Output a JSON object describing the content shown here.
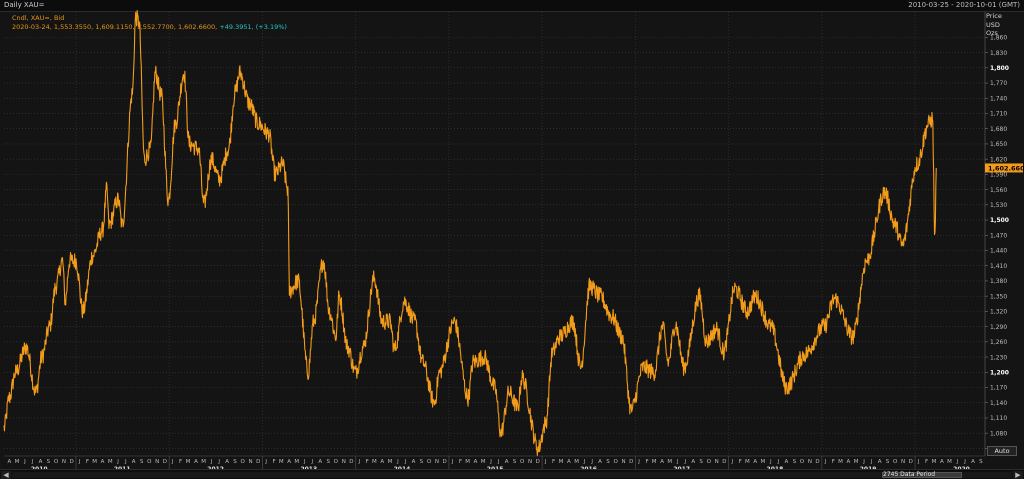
{
  "header": {
    "title": "Daily XAU=",
    "date_range": "2010-03-25 - 2020-10-01 (GMT)"
  },
  "legend": {
    "line1": "Cndl, XAU=, Bid",
    "line2": "2020-03-24, 1,553.3550, 1,609.1150, 1,552.7700, 1,602.6600, ",
    "change": "+49.3951, (+3.19%)"
  },
  "axis_header": {
    "line1": "Price",
    "line2": "USD",
    "line3": "Ozs"
  },
  "last_price": "1,602.6600",
  "auto_button": "Auto",
  "scrollbar": {
    "label": "2745 Data Period",
    "left_arrow": "◀",
    "right_arrow": "▶"
  },
  "colors": {
    "series": "#f39c1a",
    "background": "#141414",
    "grid": "#3a3a3a",
    "change": "#29c7c7",
    "price_tag": "#f39c1a"
  },
  "chart_data": {
    "type": "line",
    "title": "Daily XAU=",
    "ylabel": "Price USD Ozs",
    "ylim": [
      1035,
      1910
    ],
    "xlim": [
      "2010-03-25",
      "2020-10-01"
    ],
    "grid": true,
    "y_ticks": [
      1050,
      1080,
      1110,
      1140,
      1170,
      1200,
      1230,
      1260,
      1290,
      1320,
      1350,
      1380,
      1410,
      1440,
      1470,
      1500,
      1530,
      1560,
      1590,
      1620,
      1650,
      1680,
      1710,
      1740,
      1770,
      1800,
      1830,
      1860
    ],
    "y_tick_labels": [
      "1,050",
      "1,080",
      "1,110",
      "1,140",
      "1,170",
      "1,200",
      "1,230",
      "1,260",
      "1,290",
      "1,320",
      "1,350",
      "1,380",
      "1,410",
      "1,440",
      "1,470",
      "1,500",
      "1,530",
      "1,560",
      "1,590",
      "1,620",
      "1,650",
      "1,680",
      "1,710",
      "1,740",
      "1,770",
      "1,800",
      "1,830",
      "1,860"
    ],
    "bold_y_ticks": [
      1200,
      1500,
      1800
    ],
    "month_letters": [
      "A",
      "M",
      "J",
      "J",
      "A",
      "S",
      "O",
      "N",
      "D",
      "J",
      "F",
      "M",
      "A",
      "M",
      "J",
      "J",
      "A",
      "S",
      "O",
      "N",
      "D",
      "J",
      "F",
      "M",
      "A",
      "M",
      "J",
      "J",
      "A",
      "S",
      "O",
      "N",
      "D",
      "J",
      "F",
      "M",
      "A",
      "M",
      "J",
      "J",
      "A",
      "S",
      "O",
      "N",
      "D",
      "J",
      "F",
      "M",
      "A",
      "M",
      "J",
      "J",
      "A",
      "S",
      "O",
      "N",
      "D",
      "J",
      "F",
      "M",
      "A",
      "M",
      "J",
      "J",
      "A",
      "S",
      "O",
      "N",
      "D",
      "J",
      "F",
      "M",
      "A",
      "M",
      "J",
      "J",
      "A",
      "S",
      "O",
      "N",
      "D",
      "J",
      "F",
      "M",
      "A",
      "M",
      "J",
      "J",
      "A",
      "S",
      "O",
      "N",
      "D",
      "J",
      "F",
      "M",
      "A",
      "M",
      "J",
      "J",
      "A",
      "S",
      "O",
      "N",
      "D",
      "J",
      "F",
      "M",
      "A",
      "M",
      "J",
      "J",
      "A",
      "S",
      "O",
      "N",
      "D",
      "J",
      "F",
      "M",
      "A",
      "M",
      "J",
      "J",
      "A",
      "S"
    ],
    "year_labels": [
      "2010",
      "2011",
      "2012",
      "2013",
      "2014",
      "2015",
      "2016",
      "2017",
      "2018",
      "2019",
      "2020"
    ],
    "series": [
      {
        "name": "XAU= Bid",
        "points": [
          [
            "2010-03-25",
            1090
          ],
          [
            "2010-04-15",
            1150
          ],
          [
            "2010-05-10",
            1200
          ],
          [
            "2010-06-20",
            1250
          ],
          [
            "2010-07-28",
            1160
          ],
          [
            "2010-08-20",
            1230
          ],
          [
            "2010-09-20",
            1290
          ],
          [
            "2010-10-14",
            1370
          ],
          [
            "2010-11-09",
            1420
          ],
          [
            "2010-11-20",
            1340
          ],
          [
            "2010-12-07",
            1420
          ],
          [
            "2011-01-01",
            1420
          ],
          [
            "2011-01-28",
            1320
          ],
          [
            "2011-03-07",
            1430
          ],
          [
            "2011-04-15",
            1480
          ],
          [
            "2011-05-02",
            1560
          ],
          [
            "2011-05-10",
            1490
          ],
          [
            "2011-06-15",
            1540
          ],
          [
            "2011-07-01",
            1490
          ],
          [
            "2011-08-10",
            1750
          ],
          [
            "2011-08-23",
            1900
          ],
          [
            "2011-09-05",
            1890
          ],
          [
            "2011-09-26",
            1620
          ],
          [
            "2011-10-20",
            1640
          ],
          [
            "2011-11-08",
            1790
          ],
          [
            "2011-12-01",
            1745
          ],
          [
            "2011-12-29",
            1540
          ],
          [
            "2012-01-25",
            1690
          ],
          [
            "2012-02-28",
            1790
          ],
          [
            "2012-03-20",
            1650
          ],
          [
            "2012-04-25",
            1640
          ],
          [
            "2012-05-16",
            1530
          ],
          [
            "2012-06-15",
            1620
          ],
          [
            "2012-07-15",
            1580
          ],
          [
            "2012-08-20",
            1640
          ],
          [
            "2012-09-15",
            1750
          ],
          [
            "2012-10-04",
            1790
          ],
          [
            "2012-11-10",
            1730
          ],
          [
            "2012-12-15",
            1690
          ],
          [
            "2013-01-25",
            1670
          ],
          [
            "2013-02-20",
            1590
          ],
          [
            "2013-03-20",
            1610
          ],
          [
            "2013-04-10",
            1560
          ],
          [
            "2013-04-16",
            1360
          ],
          [
            "2013-05-20",
            1380
          ],
          [
            "2013-06-28",
            1200
          ],
          [
            "2013-07-20",
            1300
          ],
          [
            "2013-08-27",
            1420
          ],
          [
            "2013-09-20",
            1320
          ],
          [
            "2013-10-15",
            1270
          ],
          [
            "2013-10-28",
            1350
          ],
          [
            "2013-11-30",
            1250
          ],
          [
            "2013-12-31",
            1200
          ],
          [
            "2014-01-31",
            1250
          ],
          [
            "2014-03-14",
            1385
          ],
          [
            "2014-04-15",
            1300
          ],
          [
            "2014-05-15",
            1300
          ],
          [
            "2014-06-02",
            1245
          ],
          [
            "2014-07-10",
            1340
          ],
          [
            "2014-08-20",
            1300
          ],
          [
            "2014-09-20",
            1220
          ],
          [
            "2014-11-05",
            1140
          ],
          [
            "2014-11-25",
            1200
          ],
          [
            "2015-01-22",
            1300
          ],
          [
            "2015-03-17",
            1150
          ],
          [
            "2015-04-06",
            1220
          ],
          [
            "2015-05-18",
            1230
          ],
          [
            "2015-06-30",
            1170
          ],
          [
            "2015-07-24",
            1080
          ],
          [
            "2015-08-24",
            1160
          ],
          [
            "2015-09-28",
            1130
          ],
          [
            "2015-10-14",
            1190
          ],
          [
            "2015-12-17",
            1050
          ],
          [
            "2016-01-15",
            1100
          ],
          [
            "2016-02-11",
            1240
          ],
          [
            "2016-03-10",
            1270
          ],
          [
            "2016-05-01",
            1300
          ],
          [
            "2016-05-31",
            1210
          ],
          [
            "2016-07-06",
            1370
          ],
          [
            "2016-08-15",
            1350
          ],
          [
            "2016-09-30",
            1310
          ],
          [
            "2016-11-09",
            1270
          ],
          [
            "2016-12-15",
            1125
          ],
          [
            "2017-01-31",
            1210
          ],
          [
            "2017-03-15",
            1200
          ],
          [
            "2017-04-17",
            1290
          ],
          [
            "2017-05-09",
            1220
          ],
          [
            "2017-06-06",
            1295
          ],
          [
            "2017-07-10",
            1210
          ],
          [
            "2017-09-08",
            1350
          ],
          [
            "2017-10-06",
            1260
          ],
          [
            "2017-11-15",
            1285
          ],
          [
            "2017-12-12",
            1240
          ],
          [
            "2018-01-25",
            1365
          ],
          [
            "2018-03-15",
            1320
          ],
          [
            "2018-04-15",
            1350
          ],
          [
            "2018-06-15",
            1290
          ],
          [
            "2018-08-16",
            1170
          ],
          [
            "2018-10-25",
            1235
          ],
          [
            "2019-01-10",
            1290
          ],
          [
            "2019-02-20",
            1345
          ],
          [
            "2019-05-02",
            1270
          ],
          [
            "2019-06-25",
            1420
          ],
          [
            "2019-09-04",
            1555
          ],
          [
            "2019-10-15",
            1490
          ],
          [
            "2019-11-12",
            1450
          ],
          [
            "2020-01-08",
            1610
          ],
          [
            "2020-02-24",
            1690
          ],
          [
            "2020-03-09",
            1700
          ],
          [
            "2020-03-19",
            1460
          ],
          [
            "2020-03-24",
            1602.66
          ]
        ]
      }
    ]
  }
}
